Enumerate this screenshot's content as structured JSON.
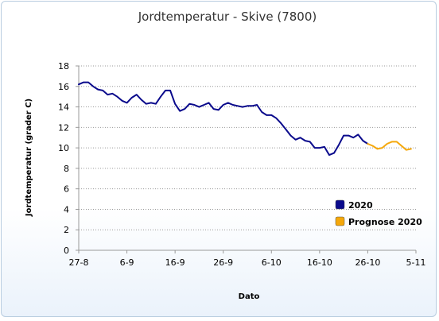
{
  "chart_data": {
    "type": "line",
    "title": "Jordtemperatur - Skive (7800)",
    "xlabel": "Dato",
    "ylabel": "Jordtemperatur (grader C)",
    "ylim": [
      0,
      18
    ],
    "yticks": [
      0,
      2,
      4,
      6,
      8,
      10,
      12,
      14,
      16,
      18
    ],
    "xticks": [
      "27-8",
      "6-9",
      "16-9",
      "26-9",
      "6-10",
      "16-10",
      "26-10",
      "5-11"
    ],
    "x_day_range": [
      "27-8",
      "5-11"
    ],
    "grid": "horizontal dotted",
    "legend_position": "lower-right",
    "series": [
      {
        "name": "2020",
        "color": "#0a0a8c",
        "x": [
          "27-8",
          "28-8",
          "29-8",
          "30-8",
          "31-8",
          "1-9",
          "2-9",
          "3-9",
          "4-9",
          "5-9",
          "6-9",
          "7-9",
          "8-9",
          "9-9",
          "10-9",
          "11-9",
          "12-9",
          "13-9",
          "14-9",
          "15-9",
          "16-9",
          "17-9",
          "18-9",
          "19-9",
          "20-9",
          "21-9",
          "22-9",
          "23-9",
          "24-9",
          "25-9",
          "26-9",
          "27-9",
          "28-9",
          "29-9",
          "30-9",
          "1-10",
          "2-10",
          "3-10",
          "4-10",
          "5-10",
          "6-10",
          "7-10",
          "8-10",
          "9-10",
          "10-10",
          "11-10",
          "12-10",
          "13-10",
          "14-10",
          "15-10",
          "16-10",
          "17-10",
          "18-10",
          "19-10",
          "20-10",
          "21-10",
          "22-10",
          "23-10",
          "24-10",
          "25-10",
          "26-10"
        ],
        "values": [
          16.2,
          16.4,
          16.4,
          16.0,
          15.7,
          15.6,
          15.2,
          15.3,
          15.0,
          14.6,
          14.4,
          14.9,
          15.2,
          14.7,
          14.3,
          14.4,
          14.3,
          15.0,
          15.6,
          15.6,
          14.3,
          13.6,
          13.8,
          14.3,
          14.2,
          14.0,
          14.2,
          14.4,
          13.8,
          13.7,
          14.2,
          14.4,
          14.2,
          14.1,
          14.0,
          14.1,
          14.1,
          14.2,
          13.5,
          13.2,
          13.2,
          12.9,
          12.4,
          11.8,
          11.2,
          10.8,
          11.0,
          10.7,
          10.6,
          10.0,
          10.0,
          10.1,
          9.3,
          9.5,
          10.3,
          11.2,
          11.2,
          11.0,
          11.3,
          10.7,
          10.4
        ]
      },
      {
        "name": "Prognose 2020",
        "color": "#f5a80b",
        "x": [
          "26-10",
          "27-10",
          "28-10",
          "29-10",
          "30-10",
          "31-10",
          "1-11",
          "2-11",
          "3-11",
          "4-11"
        ],
        "values": [
          10.4,
          10.2,
          9.9,
          10.0,
          10.4,
          10.6,
          10.6,
          10.2,
          9.8,
          9.9
        ]
      }
    ]
  }
}
